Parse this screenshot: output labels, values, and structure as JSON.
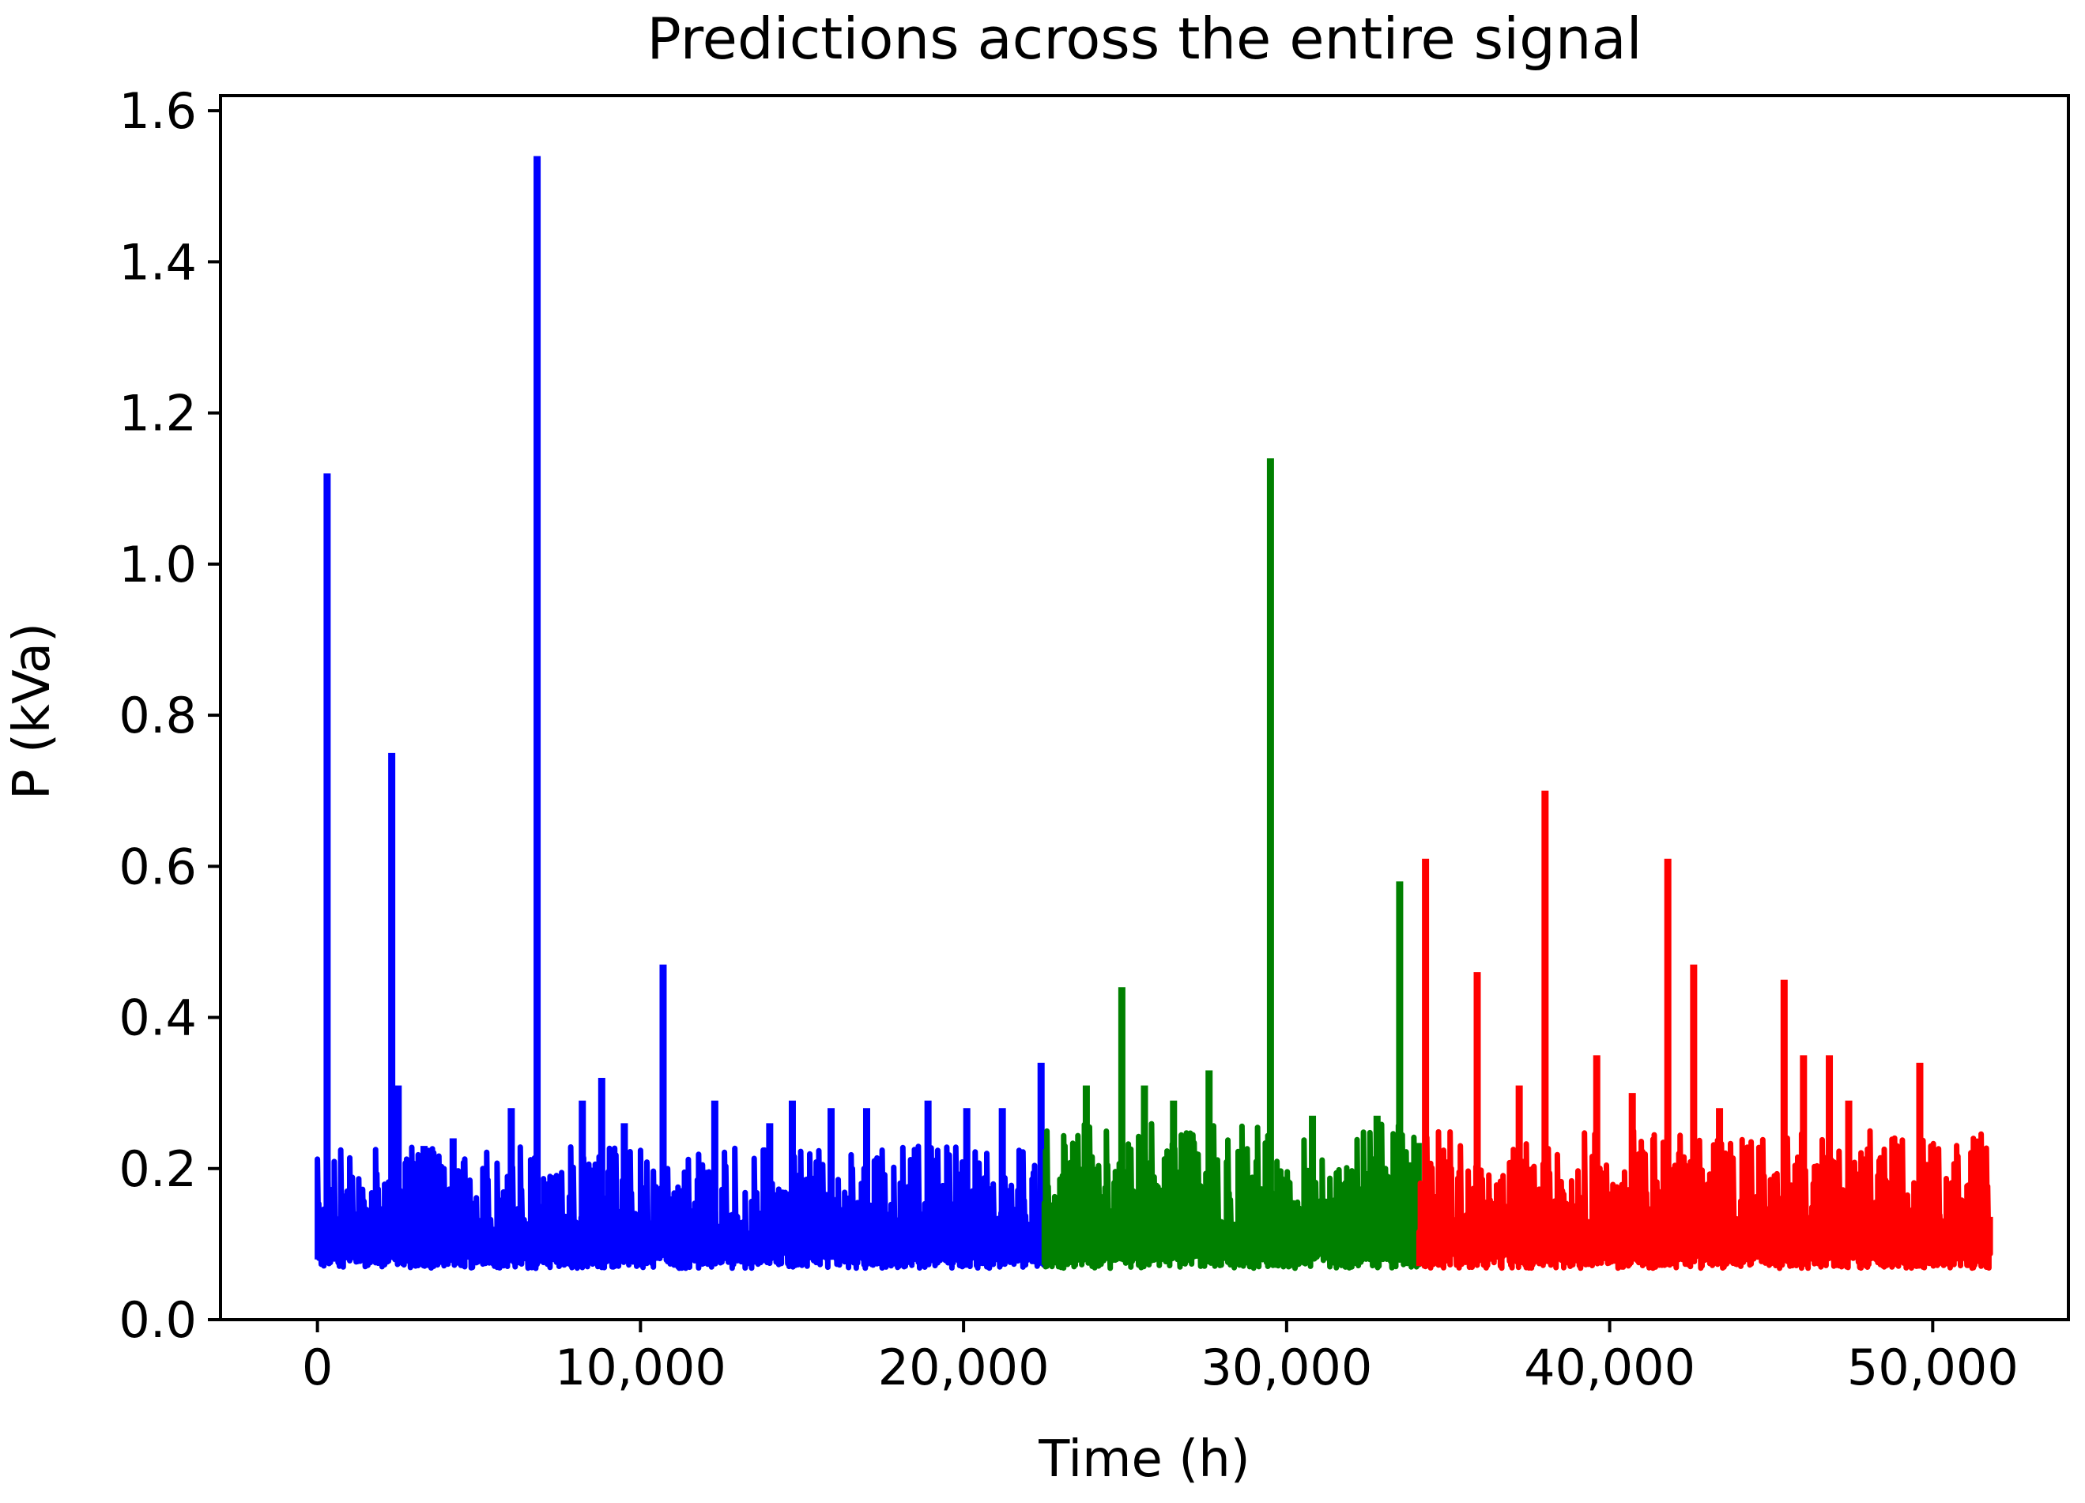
{
  "chart_data": {
    "type": "line",
    "title": "Predictions across the entire signal",
    "xlabel": "Time (h)",
    "ylabel": "P (kVa)",
    "xlim": [
      -3000,
      54200
    ],
    "ylim": [
      0,
      1.62
    ],
    "xticks": [
      0,
      10000,
      20000,
      30000,
      40000,
      50000
    ],
    "xtick_labels": [
      "0",
      "10,000",
      "20,000",
      "30,000",
      "40,000",
      "50,000"
    ],
    "yticks": [
      0.0,
      0.2,
      0.4,
      0.6,
      0.8,
      1.0,
      1.2,
      1.4,
      1.6
    ],
    "ytick_labels": [
      "0.0",
      "0.2",
      "0.4",
      "0.6",
      "0.8",
      "1.0",
      "1.2",
      "1.4",
      "1.6"
    ],
    "grid": false,
    "legend": "none",
    "series": [
      {
        "color": "#0000ff",
        "x_range": [
          0,
          22500
        ],
        "baseline": 0.08,
        "band_top": 0.2,
        "peaks": [
          {
            "x": 300,
            "y": 1.12
          },
          {
            "x": 2300,
            "y": 0.75
          },
          {
            "x": 2500,
            "y": 0.31
          },
          {
            "x": 3300,
            "y": 0.23
          },
          {
            "x": 4200,
            "y": 0.24
          },
          {
            "x": 6000,
            "y": 0.28
          },
          {
            "x": 6800,
            "y": 1.54
          },
          {
            "x": 8200,
            "y": 0.29
          },
          {
            "x": 8800,
            "y": 0.32
          },
          {
            "x": 9500,
            "y": 0.26
          },
          {
            "x": 10700,
            "y": 0.47
          },
          {
            "x": 12300,
            "y": 0.29
          },
          {
            "x": 14000,
            "y": 0.26
          },
          {
            "x": 14700,
            "y": 0.29
          },
          {
            "x": 15900,
            "y": 0.28
          },
          {
            "x": 17000,
            "y": 0.28
          },
          {
            "x": 18900,
            "y": 0.29
          },
          {
            "x": 20100,
            "y": 0.28
          },
          {
            "x": 21200,
            "y": 0.28
          },
          {
            "x": 22400,
            "y": 0.34
          }
        ]
      },
      {
        "color": "#008000",
        "x_range": [
          22500,
          34100
        ],
        "baseline": 0.08,
        "band_top": 0.23,
        "peaks": [
          {
            "x": 23800,
            "y": 0.31
          },
          {
            "x": 24900,
            "y": 0.44
          },
          {
            "x": 25600,
            "y": 0.31
          },
          {
            "x": 26500,
            "y": 0.29
          },
          {
            "x": 27600,
            "y": 0.33
          },
          {
            "x": 29500,
            "y": 1.14
          },
          {
            "x": 30800,
            "y": 0.27
          },
          {
            "x": 32800,
            "y": 0.27
          },
          {
            "x": 33500,
            "y": 0.58
          }
        ]
      },
      {
        "color": "#ff0000",
        "x_range": [
          34100,
          51800
        ],
        "baseline": 0.08,
        "band_top": 0.22,
        "peaks": [
          {
            "x": 34300,
            "y": 0.61
          },
          {
            "x": 35900,
            "y": 0.46
          },
          {
            "x": 37200,
            "y": 0.31
          },
          {
            "x": 38000,
            "y": 0.7
          },
          {
            "x": 39600,
            "y": 0.35
          },
          {
            "x": 40700,
            "y": 0.3
          },
          {
            "x": 41800,
            "y": 0.61
          },
          {
            "x": 42600,
            "y": 0.47
          },
          {
            "x": 43400,
            "y": 0.28
          },
          {
            "x": 45400,
            "y": 0.45
          },
          {
            "x": 46000,
            "y": 0.35
          },
          {
            "x": 46800,
            "y": 0.35
          },
          {
            "x": 47400,
            "y": 0.29
          },
          {
            "x": 49600,
            "y": 0.34
          }
        ]
      }
    ]
  }
}
